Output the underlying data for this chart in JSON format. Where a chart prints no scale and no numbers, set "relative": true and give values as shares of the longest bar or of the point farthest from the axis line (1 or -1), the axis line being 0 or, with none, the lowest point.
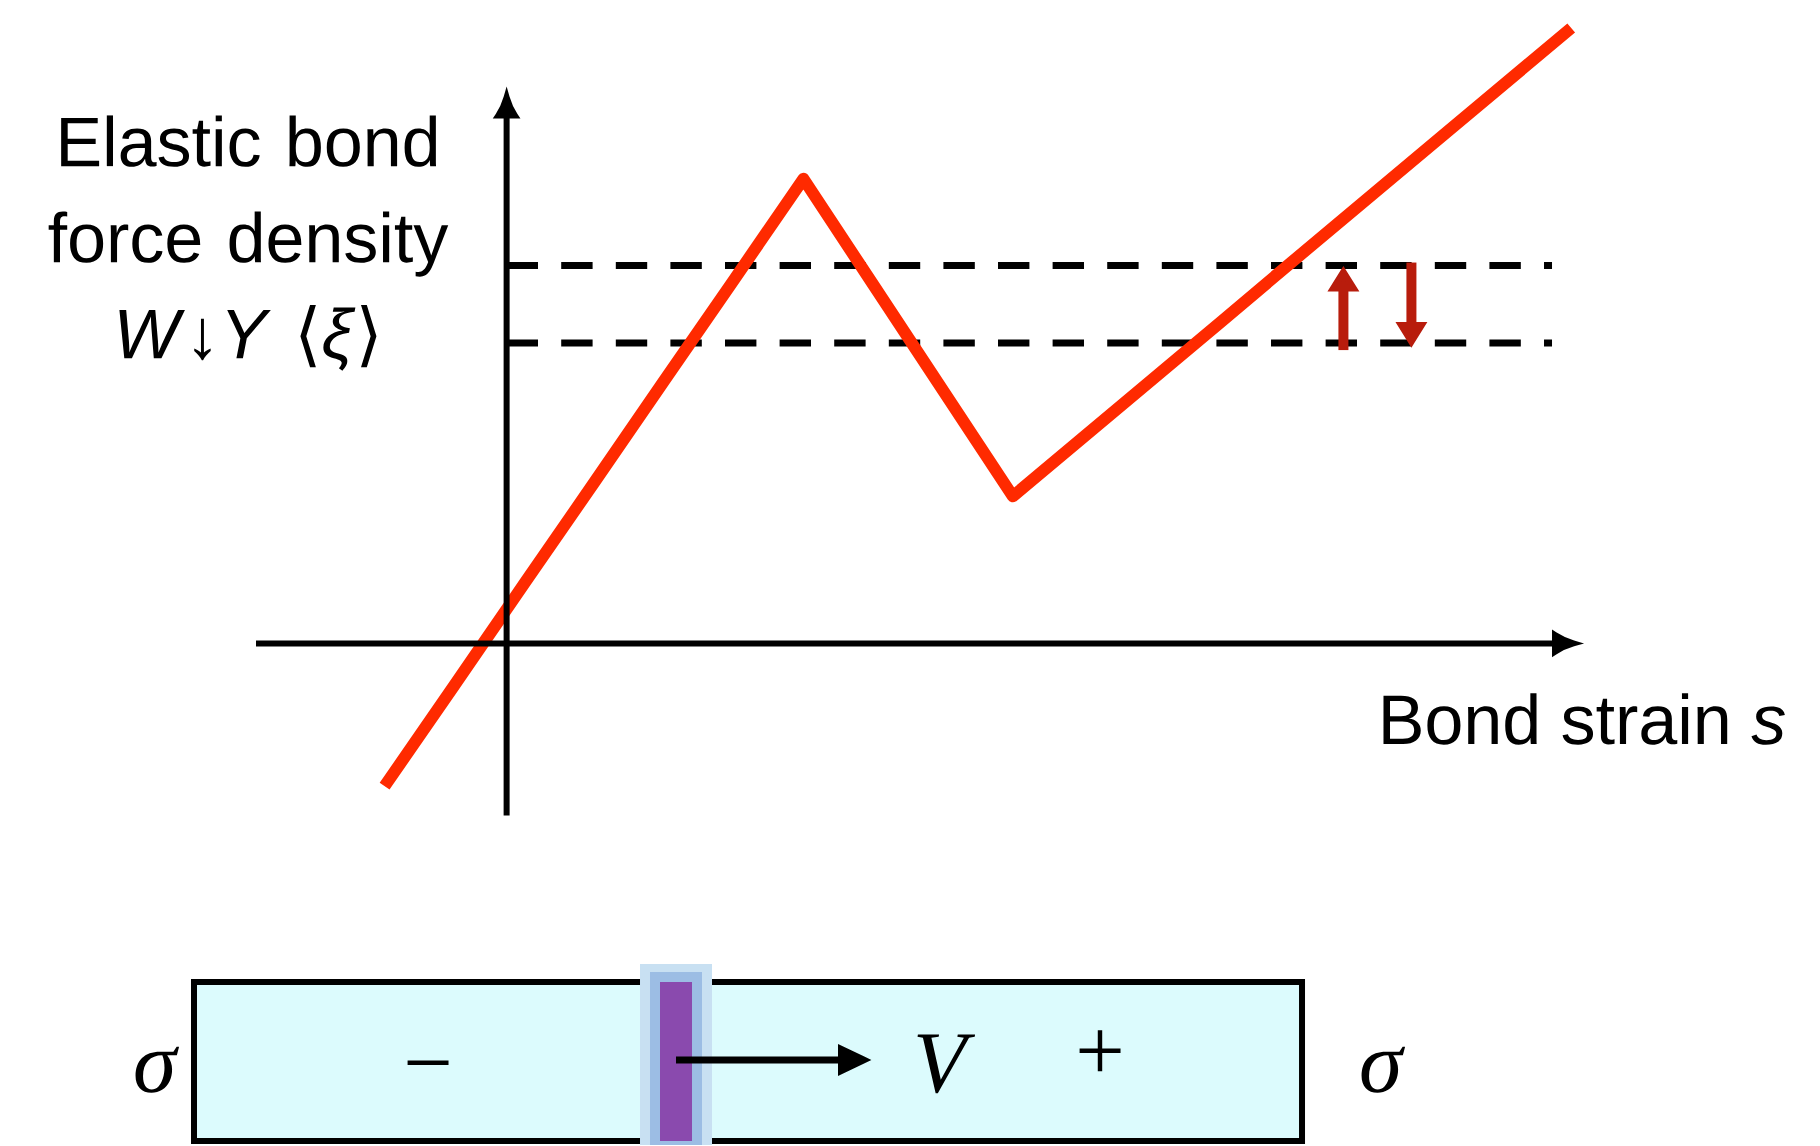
{
  "chart_data": {
    "type": "line",
    "relative": true,
    "ylabel": "Elastic bond force density *W*↓*Y* ⟨*ξ*⟩",
    "xlabel": "Bond strain *s*",
    "categories": [
      null,
      null,
      null,
      null,
      null,
      null,
      null,
      null,
      null,
      null,
      null,
      null,
      null,
      null,
      null,
      null,
      null,
      null
    ],
    "series": [
      {
        "color": "#ff2a00",
        "values": [
          -0.232,
          -0.068,
          0.097,
          0.261,
          0.426,
          0.59,
          0.755,
          0.583,
          0.411,
          0.239,
          0.334,
          0.429,
          0.524,
          0.62,
          0.715,
          0.81,
          0.905,
          1
        ]
      }
    ],
    "ref_lines": [
      {
        "axis": "y",
        "value": 0.614,
        "color": "#000000",
        "line_style": "dashed"
      },
      {
        "axis": "y",
        "value": 0.488,
        "color": "#000000",
        "line_style": "dashed"
      }
    ],
    "annotations": [
      "*σ*",
      "−",
      "*V*",
      "+",
      "*σ*"
    ]
  }
}
